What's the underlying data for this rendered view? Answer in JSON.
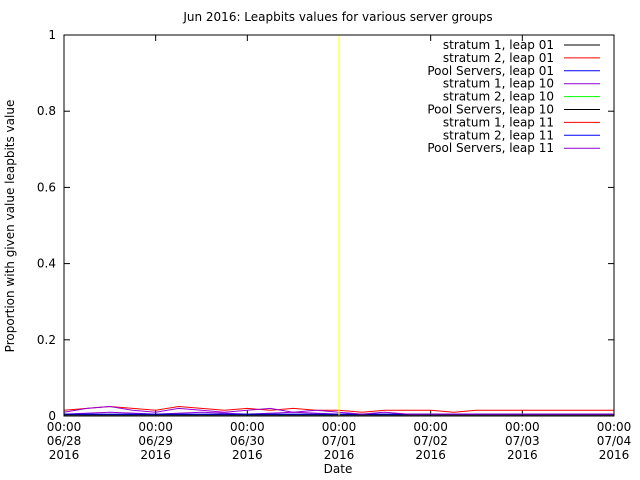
{
  "chart_data": {
    "type": "line",
    "title": "Jun 2016: Leapbits values for various server groups",
    "xlabel": "Date",
    "ylabel": "Proportion with given value leapbits value",
    "ylim": [
      0,
      1
    ],
    "yticks": [
      "0",
      "0.2",
      "0.4",
      "0.6",
      "0.8",
      "1"
    ],
    "ytick_values": [
      0,
      0.2,
      0.4,
      0.6,
      0.8,
      1
    ],
    "xlim": [
      "2016-06-28 00:00",
      "2016-07-04 00:00"
    ],
    "xticks": [
      {
        "time": "00:00",
        "date": "06/28",
        "year": "2016"
      },
      {
        "time": "00:00",
        "date": "06/29",
        "year": "2016"
      },
      {
        "time": "00:00",
        "date": "06/30",
        "year": "2016"
      },
      {
        "time": "00:00",
        "date": "07/01",
        "year": "2016"
      },
      {
        "time": "00:00",
        "date": "07/02",
        "year": "2016"
      },
      {
        "time": "00:00",
        "date": "07/03",
        "year": "2016"
      },
      {
        "time": "00:00",
        "date": "07/04",
        "year": "2016"
      }
    ],
    "grid": false,
    "legend_position": "top-right",
    "marker_line": {
      "x": "2016-07-01 00:00",
      "color": "#ffff00"
    },
    "series": [
      {
        "name": "stratum 1, leap 01",
        "color": "#000000",
        "x": [
          "2016-06-28 00:00",
          "2016-06-29 00:00",
          "2016-06-30 00:00",
          "2016-07-01 00:00",
          "2016-07-02 00:00",
          "2016-07-03 00:00",
          "2016-07-04 00:00"
        ],
        "values": [
          0,
          0,
          0,
          0,
          0,
          0,
          0
        ]
      },
      {
        "name": "stratum 2, leap 01",
        "color": "#ff0000",
        "x": [
          "2016-06-28 00:00",
          "2016-06-29 00:00",
          "2016-06-30 00:00",
          "2016-07-01 00:00",
          "2016-07-02 00:00",
          "2016-07-03 00:00",
          "2016-07-04 00:00"
        ],
        "values": [
          0,
          0,
          0,
          0,
          0,
          0,
          0
        ]
      },
      {
        "name": "Pool Servers, leap 01",
        "color": "#0000ff",
        "x": [
          "2016-06-28 00:00",
          "2016-06-29 00:00",
          "2016-06-30 00:00",
          "2016-07-01 00:00",
          "2016-07-02 00:00",
          "2016-07-03 00:00",
          "2016-07-04 00:00"
        ],
        "values": [
          0,
          0,
          0,
          0,
          0,
          0,
          0
        ]
      },
      {
        "name": "stratum 1, leap 10",
        "color": "#9400d3",
        "x": [
          "2016-06-28 00:00",
          "2016-06-28 12:00",
          "2016-06-29 00:00",
          "2016-06-29 12:00",
          "2016-06-30 00:00",
          "2016-06-30 12:00",
          "2016-07-01 00:00",
          "2016-07-01 12:00",
          "2016-07-02 00:00",
          "2016-07-02 12:00",
          "2016-07-03 00:00",
          "2016-07-03 12:00",
          "2016-07-04 00:00"
        ],
        "values": [
          0.005,
          0.01,
          0.005,
          0.01,
          0.005,
          0.01,
          0.005,
          0.005,
          0.005,
          0.005,
          0.005,
          0.005,
          0.005
        ]
      },
      {
        "name": "stratum 2, leap 10",
        "color": "#00ff00",
        "x": [
          "2016-06-28 00:00",
          "2016-06-29 00:00",
          "2016-06-30 00:00",
          "2016-07-01 00:00",
          "2016-07-02 00:00",
          "2016-07-03 00:00",
          "2016-07-04 00:00"
        ],
        "values": [
          0,
          0,
          0,
          0,
          0,
          0,
          0
        ]
      },
      {
        "name": "Pool Servers, leap 10",
        "color": "#000000",
        "x": [
          "2016-06-28 00:00",
          "2016-06-29 00:00",
          "2016-06-30 00:00",
          "2016-07-01 00:00",
          "2016-07-02 00:00",
          "2016-07-03 00:00",
          "2016-07-04 00:00"
        ],
        "values": [
          0.003,
          0.003,
          0.003,
          0.003,
          0.003,
          0.003,
          0.003
        ]
      },
      {
        "name": "stratum 1, leap 11",
        "color": "#ff0000",
        "x": [
          "2016-06-28 00:00",
          "2016-06-28 06:00",
          "2016-06-28 12:00",
          "2016-06-28 18:00",
          "2016-06-29 00:00",
          "2016-06-29 06:00",
          "2016-06-29 12:00",
          "2016-06-29 18:00",
          "2016-06-30 00:00",
          "2016-06-30 06:00",
          "2016-06-30 12:00",
          "2016-06-30 18:00",
          "2016-07-01 00:00",
          "2016-07-01 06:00",
          "2016-07-01 12:00",
          "2016-07-01 18:00",
          "2016-07-02 00:00",
          "2016-07-02 06:00",
          "2016-07-02 12:00",
          "2016-07-02 18:00",
          "2016-07-03 00:00",
          "2016-07-03 06:00",
          "2016-07-03 12:00",
          "2016-07-03 18:00",
          "2016-07-04 00:00"
        ],
        "values": [
          0.015,
          0.02,
          0.025,
          0.02,
          0.015,
          0.025,
          0.02,
          0.015,
          0.02,
          0.015,
          0.02,
          0.015,
          0.015,
          0.01,
          0.015,
          0.015,
          0.015,
          0.01,
          0.015,
          0.015,
          0.015,
          0.015,
          0.015,
          0.015,
          0.015
        ]
      },
      {
        "name": "stratum 2, leap 11",
        "color": "#0000ff",
        "x": [
          "2016-06-28 00:00",
          "2016-06-29 00:00",
          "2016-06-30 00:00",
          "2016-07-01 00:00",
          "2016-07-02 00:00",
          "2016-07-03 00:00",
          "2016-07-04 00:00"
        ],
        "values": [
          0.005,
          0.005,
          0.005,
          0.005,
          0.005,
          0.005,
          0.005
        ]
      },
      {
        "name": "Pool Servers, leap 11",
        "color": "#9400d3",
        "x": [
          "2016-06-28 00:00",
          "2016-06-28 06:00",
          "2016-06-28 12:00",
          "2016-06-28 18:00",
          "2016-06-29 00:00",
          "2016-06-29 06:00",
          "2016-06-29 12:00",
          "2016-06-29 18:00",
          "2016-06-30 00:00",
          "2016-06-30 06:00",
          "2016-06-30 12:00",
          "2016-06-30 18:00",
          "2016-07-01 00:00",
          "2016-07-01 06:00",
          "2016-07-01 12:00",
          "2016-07-01 18:00",
          "2016-07-02 00:00",
          "2016-07-02 06:00",
          "2016-07-02 12:00",
          "2016-07-02 18:00",
          "2016-07-03 00:00",
          "2016-07-03 06:00",
          "2016-07-03 12:00",
          "2016-07-03 18:00",
          "2016-07-04 00:00"
        ],
        "values": [
          0.01,
          0.02,
          0.025,
          0.015,
          0.01,
          0.02,
          0.015,
          0.01,
          0.015,
          0.02,
          0.01,
          0.015,
          0.01,
          0.005,
          0.01,
          0.005,
          0.005,
          0.005,
          0.005,
          0.005,
          0.005,
          0.005,
          0.005,
          0.005,
          0.005
        ]
      }
    ]
  }
}
